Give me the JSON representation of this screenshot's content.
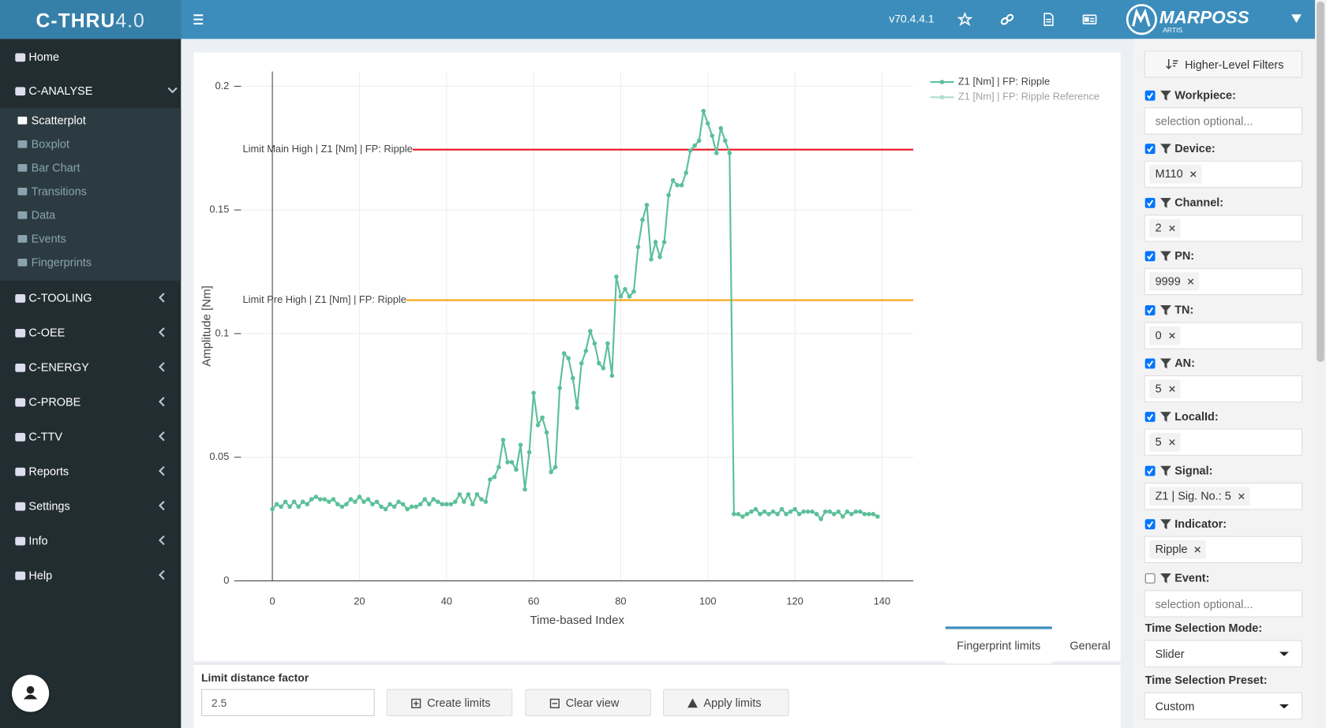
{
  "header": {
    "logo_main": "C-THRU",
    "logo_version": "4.0",
    "version": "v70.4.4.1",
    "brand": "MARPOSS",
    "brand_sub": "ARTIS"
  },
  "sidebar": {
    "items": [
      {
        "label": "Home"
      },
      {
        "label": "C-ANALYSE",
        "expandable": true,
        "expanded": true,
        "children": [
          {
            "label": "Scatterplot",
            "active": true
          },
          {
            "label": "Boxplot"
          },
          {
            "label": "Bar Chart"
          },
          {
            "label": "Transitions"
          },
          {
            "label": "Data"
          },
          {
            "label": "Events"
          },
          {
            "label": "Fingerprints"
          }
        ]
      },
      {
        "label": "C-TOOLING",
        "expandable": true
      },
      {
        "label": "C-OEE",
        "expandable": true
      },
      {
        "label": "C-ENERGY",
        "expandable": true
      },
      {
        "label": "C-PROBE",
        "expandable": true
      },
      {
        "label": "C-TTV",
        "expandable": true
      },
      {
        "label": "Reports",
        "expandable": true
      },
      {
        "label": "Settings",
        "expandable": true
      },
      {
        "label": "Info",
        "expandable": true
      },
      {
        "label": "Help",
        "expandable": true
      }
    ]
  },
  "chart_data": {
    "type": "line",
    "x_label": "Time-based Index",
    "y_label": "Amplitude [Nm]",
    "xlim": [
      -7.2,
      147.2
    ],
    "ylim": [
      0,
      0.206
    ],
    "xticks": [
      0,
      20,
      40,
      60,
      80,
      100,
      120,
      140
    ],
    "yticks": [
      0,
      0.05,
      0.1,
      0.15,
      0.2
    ],
    "grid": true,
    "legend": "top-right",
    "series": [
      {
        "name": "Z1 [Nm] | FP: Ripple",
        "color": "#5cc09a",
        "x": [
          0,
          1,
          2,
          3,
          4,
          5,
          6,
          7,
          8,
          9,
          10,
          11,
          12,
          13,
          14,
          15,
          16,
          17,
          18,
          19,
          20,
          21,
          22,
          23,
          24,
          25,
          26,
          27,
          28,
          29,
          30,
          31,
          32,
          33,
          34,
          35,
          36,
          37,
          38,
          39,
          40,
          41,
          42,
          43,
          44,
          45,
          46,
          47,
          48,
          49,
          50,
          51,
          52,
          53,
          54,
          55,
          56,
          57,
          58,
          59,
          60,
          61,
          62,
          63,
          64,
          65,
          66,
          67,
          68,
          69,
          70,
          71,
          72,
          73,
          74,
          75,
          76,
          77,
          78,
          79,
          80,
          81,
          82,
          83,
          84,
          85,
          86,
          87,
          88,
          89,
          90,
          91,
          92,
          93,
          94,
          95,
          96,
          97,
          98,
          99,
          100,
          101,
          102,
          103,
          104,
          105,
          106,
          107,
          108,
          109,
          110,
          111,
          112,
          113,
          114,
          115,
          116,
          117,
          118,
          119,
          120,
          121,
          122,
          123,
          124,
          125,
          126,
          127,
          128,
          129,
          130,
          131,
          132,
          133,
          134,
          135,
          136,
          137,
          138,
          139
        ],
        "values": [
          0.029,
          0.031,
          0.03,
          0.032,
          0.03,
          0.032,
          0.03,
          0.032,
          0.031,
          0.033,
          0.034,
          0.033,
          0.033,
          0.032,
          0.033,
          0.031,
          0.03,
          0.031,
          0.033,
          0.032,
          0.034,
          0.032,
          0.033,
          0.031,
          0.032,
          0.03,
          0.029,
          0.031,
          0.03,
          0.032,
          0.031,
          0.029,
          0.03,
          0.03,
          0.031,
          0.033,
          0.031,
          0.033,
          0.032,
          0.031,
          0.031,
          0.031,
          0.032,
          0.035,
          0.032,
          0.035,
          0.031,
          0.035,
          0.033,
          0.032,
          0.041,
          0.042,
          0.046,
          0.057,
          0.048,
          0.048,
          0.045,
          0.055,
          0.037,
          0.052,
          0.076,
          0.063,
          0.066,
          0.06,
          0.044,
          0.046,
          0.078,
          0.092,
          0.09,
          0.082,
          0.07,
          0.088,
          0.093,
          0.101,
          0.096,
          0.088,
          0.086,
          0.096,
          0.083,
          0.123,
          0.115,
          0.118,
          0.115,
          0.117,
          0.135,
          0.146,
          0.152,
          0.13,
          0.137,
          0.131,
          0.137,
          0.156,
          0.162,
          0.16,
          0.16,
          0.165,
          0.174,
          0.176,
          0.178,
          0.19,
          0.185,
          0.18,
          0.173,
          0.183,
          0.178,
          0.173,
          0.027,
          0.027,
          0.026,
          0.027,
          0.028,
          0.029,
          0.027,
          0.028,
          0.027,
          0.028,
          0.027,
          0.029,
          0.027,
          0.028,
          0.029,
          0.027,
          0.028,
          0.028,
          0.028,
          0.027,
          0.025,
          0.028,
          0.028,
          0.027,
          0.028,
          0.026,
          0.028,
          0.027,
          0.028,
          0.028,
          0.027,
          0.027,
          0.027,
          0.026
        ]
      }
    ],
    "hidden_series": [
      {
        "name": "Z1 [Nm] | FP: Ripple Reference",
        "color": "#5cc09a"
      }
    ],
    "limits": [
      {
        "label": "Limit Main High | Z1 [Nm] | FP: Ripple",
        "value": 0.1744,
        "color": "#e8141e"
      },
      {
        "label": "Limit Pre High | Z1 [Nm] | FP: Ripple",
        "value": 0.1135,
        "color": "#f5a30f"
      }
    ]
  },
  "tabs": [
    {
      "label": "Fingerprint limits",
      "active": true
    },
    {
      "label": "General"
    }
  ],
  "limit_form": {
    "label": "Limit distance factor",
    "value": "2.5",
    "buttons": [
      "Create limits",
      "Clear view",
      "Apply limits"
    ]
  },
  "filter_panel": {
    "button": "Higher-Level Filters",
    "filters": [
      {
        "label": "Workpiece:",
        "checked": true,
        "placeholder": "selection optional..."
      },
      {
        "label": "Device:",
        "checked": true,
        "tag": "M110"
      },
      {
        "label": "Channel:",
        "checked": true,
        "tag": "2"
      },
      {
        "label": "PN:",
        "checked": true,
        "tag": "9999"
      },
      {
        "label": "TN:",
        "checked": true,
        "tag": "0"
      },
      {
        "label": "AN:",
        "checked": true,
        "tag": "5"
      },
      {
        "label": "LocalId:",
        "checked": true,
        "tag": "5"
      },
      {
        "label": "Signal:",
        "checked": true,
        "tag": "Z1 | Sig. No.: 5"
      },
      {
        "label": "Indicator:",
        "checked": true,
        "tag": "Ripple"
      },
      {
        "label": "Event:",
        "checked": false,
        "placeholder": "selection optional..."
      }
    ],
    "selects": [
      {
        "label": "Time Selection Mode:",
        "value": "Slider"
      },
      {
        "label": "Time Selection Preset:",
        "value": "Custom"
      }
    ]
  }
}
